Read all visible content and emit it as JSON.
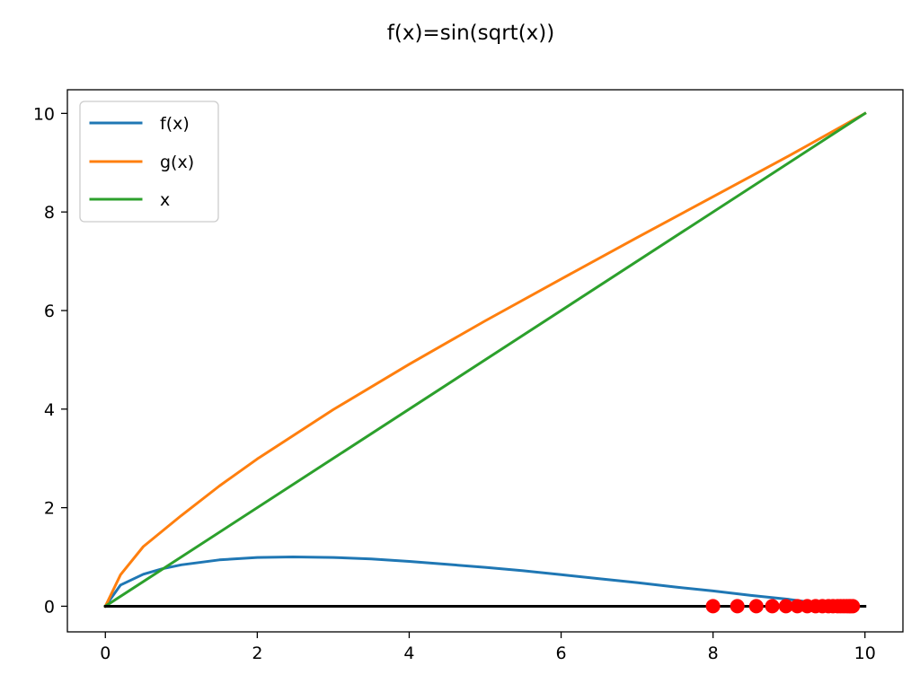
{
  "chart_data": {
    "type": "line",
    "title": "f(x)=sin(sqrt(x))",
    "xlabel": "",
    "ylabel": "",
    "xlim": [
      -0.5,
      10.5
    ],
    "ylim": [
      -0.52,
      10.48
    ],
    "xticks": [
      0,
      2,
      4,
      6,
      8,
      10
    ],
    "xtick_labels": [
      "0",
      "2",
      "4",
      "6",
      "8",
      "10"
    ],
    "yticks": [
      0,
      2,
      4,
      6,
      8,
      10
    ],
    "ytick_labels": [
      "0",
      "2",
      "4",
      "6",
      "8",
      "10"
    ],
    "grid": false,
    "legend": "top-left",
    "series": [
      {
        "name": "f(x)",
        "color": "#1f77b4",
        "x": [
          0,
          0.2,
          0.5,
          0.75,
          1,
          1.5,
          2,
          2.47,
          3,
          3.5,
          4,
          4.5,
          5,
          5.5,
          6,
          6.5,
          7,
          7.5,
          8,
          8.5,
          9,
          9.2
        ],
        "y": [
          0,
          0.43,
          0.65,
          0.76,
          0.84,
          0.94,
          0.99,
          1.0,
          0.99,
          0.96,
          0.91,
          0.85,
          0.79,
          0.72,
          0.64,
          0.56,
          0.48,
          0.39,
          0.31,
          0.22,
          0.14,
          0.1
        ]
      },
      {
        "name": "g(x)",
        "color": "#ff7f0e",
        "x": [
          0,
          0.2,
          0.5,
          1,
          1.5,
          2,
          3,
          4,
          5,
          6,
          7,
          8,
          9,
          10
        ],
        "y": [
          0,
          0.64,
          1.21,
          1.84,
          2.44,
          2.99,
          3.99,
          4.91,
          5.79,
          6.64,
          7.48,
          8.31,
          9.14,
          10.0
        ]
      },
      {
        "name": "x",
        "color": "#2ca02c",
        "x": [
          0,
          10
        ],
        "y": [
          0,
          10
        ]
      }
    ],
    "baseline": {
      "color": "#000000",
      "x": [
        0,
        10
      ],
      "y": [
        0,
        0
      ]
    },
    "points": {
      "color": "#ff0000",
      "x": [
        8.0,
        8.32,
        8.57,
        8.78,
        8.96,
        9.11,
        9.24,
        9.35,
        9.44,
        9.52,
        9.58,
        9.64,
        9.68,
        9.72,
        9.76,
        9.79,
        9.81,
        9.84
      ],
      "y": [
        0,
        0,
        0,
        0,
        0,
        0,
        0,
        0,
        0,
        0,
        0,
        0,
        0,
        0,
        0,
        0,
        0,
        0
      ]
    }
  }
}
